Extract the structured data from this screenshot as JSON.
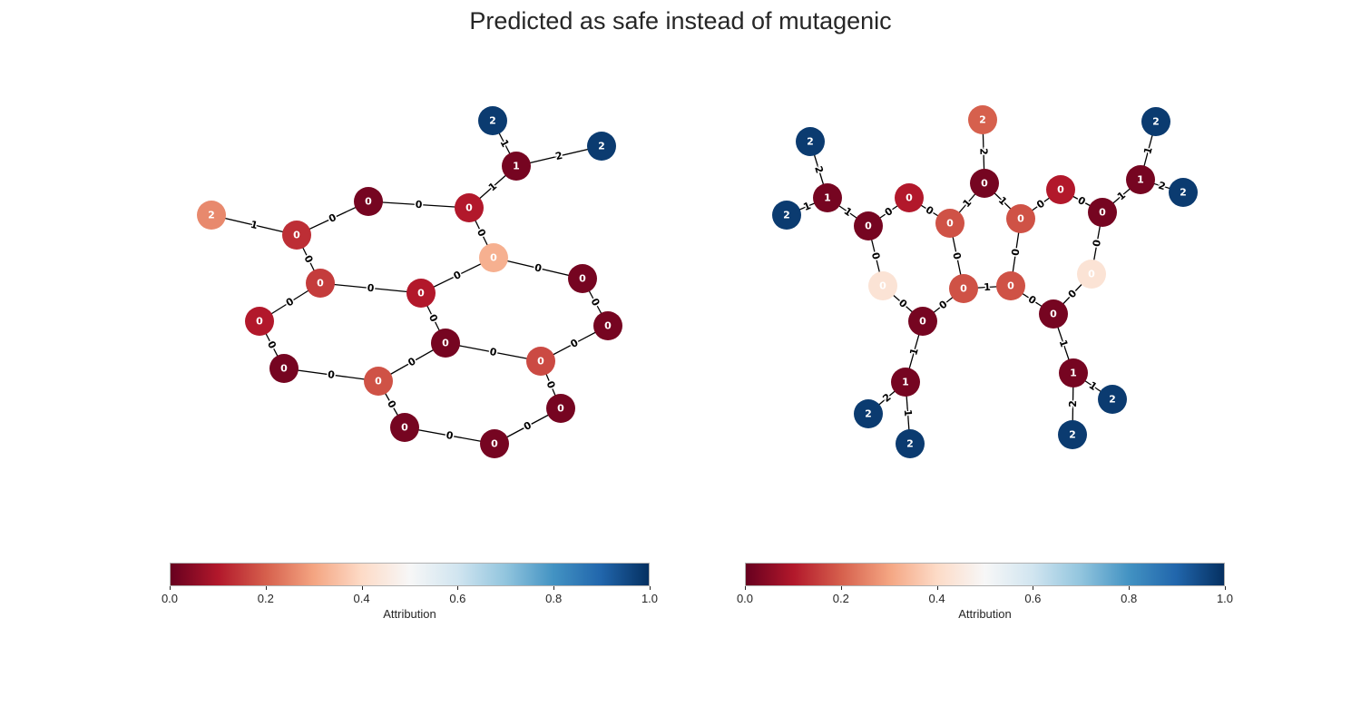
{
  "title": "Predicted as safe instead of mutagenic",
  "colorbar": {
    "label": "Attribution",
    "ticks": [
      "0.0",
      "0.2",
      "0.4",
      "0.6",
      "0.8",
      "1.0"
    ],
    "colormap": "RdBu",
    "stops": [
      "#67001f",
      "#b2182b",
      "#d6604d",
      "#f4a582",
      "#fddbc7",
      "#f7f7f7",
      "#d1e5f0",
      "#92c5de",
      "#4393c3",
      "#2166ac",
      "#053061"
    ]
  },
  "graphs": [
    {
      "name": "left-graph",
      "nodes": [
        {
          "id": 0,
          "label": "2",
          "attribution": 0.98
        },
        {
          "id": 1,
          "label": "2",
          "attribution": 0.98
        },
        {
          "id": 2,
          "label": "1",
          "attribution": 0.02
        },
        {
          "id": 3,
          "label": "2",
          "attribution": 0.26
        },
        {
          "id": 4,
          "label": "0",
          "attribution": 0.13
        },
        {
          "id": 5,
          "label": "0",
          "attribution": 0.02
        },
        {
          "id": 6,
          "label": "0",
          "attribution": 0.1
        },
        {
          "id": 7,
          "label": "0",
          "attribution": 0.32
        },
        {
          "id": 8,
          "label": "0",
          "attribution": 0.15
        },
        {
          "id": 9,
          "label": "0",
          "attribution": 0.1
        },
        {
          "id": 10,
          "label": "0",
          "attribution": 0.02
        },
        {
          "id": 11,
          "label": "0",
          "attribution": 0.02
        },
        {
          "id": 12,
          "label": "0",
          "attribution": 0.1
        },
        {
          "id": 13,
          "label": "0",
          "attribution": 0.02
        },
        {
          "id": 14,
          "label": "0",
          "attribution": 0.02
        },
        {
          "id": 15,
          "label": "0",
          "attribution": 0.18
        },
        {
          "id": 16,
          "label": "0",
          "attribution": 0.17
        },
        {
          "id": 17,
          "label": "0",
          "attribution": 0.02
        },
        {
          "id": 18,
          "label": "0",
          "attribution": 0.02
        },
        {
          "id": 19,
          "label": "0",
          "attribution": 0.02
        }
      ],
      "edges": [
        {
          "source": 0,
          "target": 2,
          "label": "1"
        },
        {
          "source": 2,
          "target": 1,
          "label": "2"
        },
        {
          "source": 2,
          "target": 6,
          "label": "1"
        },
        {
          "source": 3,
          "target": 4,
          "label": "1"
        },
        {
          "source": 4,
          "target": 5,
          "label": "0"
        },
        {
          "source": 5,
          "target": 6,
          "label": "0"
        },
        {
          "source": 6,
          "target": 7,
          "label": "0"
        },
        {
          "source": 4,
          "target": 8,
          "label": "0"
        },
        {
          "source": 8,
          "target": 9,
          "label": "0"
        },
        {
          "source": 9,
          "target": 7,
          "label": "0"
        },
        {
          "source": 7,
          "target": 10,
          "label": "0"
        },
        {
          "source": 10,
          "target": 11,
          "label": "0"
        },
        {
          "source": 8,
          "target": 12,
          "label": "0"
        },
        {
          "source": 12,
          "target": 13,
          "label": "0"
        },
        {
          "source": 9,
          "target": 14,
          "label": "0"
        },
        {
          "source": 13,
          "target": 15,
          "label": "0"
        },
        {
          "source": 14,
          "target": 15,
          "label": "0"
        },
        {
          "source": 14,
          "target": 16,
          "label": "0"
        },
        {
          "source": 11,
          "target": 16,
          "label": "0"
        },
        {
          "source": 15,
          "target": 17,
          "label": "0"
        },
        {
          "source": 17,
          "target": 18,
          "label": "0"
        },
        {
          "source": 16,
          "target": 19,
          "label": "0"
        },
        {
          "source": 18,
          "target": 19,
          "label": "0"
        }
      ]
    },
    {
      "name": "right-graph",
      "nodes": [
        {
          "id": 0,
          "label": "2",
          "attribution": 0.98
        },
        {
          "id": 1,
          "label": "2",
          "attribution": 0.98
        },
        {
          "id": 2,
          "label": "1",
          "attribution": 0.02
        },
        {
          "id": 3,
          "label": "0",
          "attribution": 0.02
        },
        {
          "id": 4,
          "label": "0",
          "attribution": 0.1
        },
        {
          "id": 5,
          "label": "0",
          "attribution": 0.18
        },
        {
          "id": 6,
          "label": "2",
          "attribution": 0.2
        },
        {
          "id": 7,
          "label": "0",
          "attribution": 0.02
        },
        {
          "id": 8,
          "label": "0",
          "attribution": 0.18
        },
        {
          "id": 9,
          "label": "0",
          "attribution": 0.1
        },
        {
          "id": 10,
          "label": "0",
          "attribution": 0.02
        },
        {
          "id": 11,
          "label": "1",
          "attribution": 0.02
        },
        {
          "id": 12,
          "label": "2",
          "attribution": 0.98
        },
        {
          "id": 13,
          "label": "2",
          "attribution": 0.98
        },
        {
          "id": 14,
          "label": "0",
          "attribution": 0.43
        },
        {
          "id": 15,
          "label": "0",
          "attribution": 0.18
        },
        {
          "id": 16,
          "label": "0",
          "attribution": 0.18
        },
        {
          "id": 17,
          "label": "0",
          "attribution": 0.43
        },
        {
          "id": 18,
          "label": "0",
          "attribution": 0.02
        },
        {
          "id": 19,
          "label": "0",
          "attribution": 0.02
        },
        {
          "id": 20,
          "label": "1",
          "attribution": 0.02
        },
        {
          "id": 21,
          "label": "1",
          "attribution": 0.02
        },
        {
          "id": 22,
          "label": "2",
          "attribution": 0.98
        },
        {
          "id": 23,
          "label": "2",
          "attribution": 0.98
        },
        {
          "id": 24,
          "label": "2",
          "attribution": 0.98
        },
        {
          "id": 25,
          "label": "2",
          "attribution": 0.98
        }
      ],
      "edges": [
        {
          "source": 0,
          "target": 2,
          "label": "2"
        },
        {
          "source": 1,
          "target": 2,
          "label": "1"
        },
        {
          "source": 2,
          "target": 3,
          "label": "1"
        },
        {
          "source": 3,
          "target": 4,
          "label": "0"
        },
        {
          "source": 4,
          "target": 5,
          "label": "0"
        },
        {
          "source": 5,
          "target": 7,
          "label": "1"
        },
        {
          "source": 6,
          "target": 7,
          "label": "2"
        },
        {
          "source": 7,
          "target": 8,
          "label": "1"
        },
        {
          "source": 8,
          "target": 9,
          "label": "0"
        },
        {
          "source": 9,
          "target": 10,
          "label": "0"
        },
        {
          "source": 10,
          "target": 11,
          "label": "1"
        },
        {
          "source": 11,
          "target": 12,
          "label": "1"
        },
        {
          "source": 11,
          "target": 13,
          "label": "2"
        },
        {
          "source": 3,
          "target": 14,
          "label": "0"
        },
        {
          "source": 5,
          "target": 15,
          "label": "0"
        },
        {
          "source": 8,
          "target": 16,
          "label": "0"
        },
        {
          "source": 10,
          "target": 17,
          "label": "0"
        },
        {
          "source": 14,
          "target": 18,
          "label": "0"
        },
        {
          "source": 15,
          "target": 18,
          "label": "0"
        },
        {
          "source": 15,
          "target": 16,
          "label": "1"
        },
        {
          "source": 16,
          "target": 19,
          "label": "0"
        },
        {
          "source": 17,
          "target": 19,
          "label": "0"
        },
        {
          "source": 18,
          "target": 20,
          "label": "1"
        },
        {
          "source": 19,
          "target": 21,
          "label": "1"
        },
        {
          "source": 20,
          "target": 22,
          "label": "2"
        },
        {
          "source": 20,
          "target": 23,
          "label": "1"
        },
        {
          "source": 21,
          "target": 24,
          "label": "1"
        },
        {
          "source": 21,
          "target": 25,
          "label": "2"
        }
      ]
    }
  ]
}
